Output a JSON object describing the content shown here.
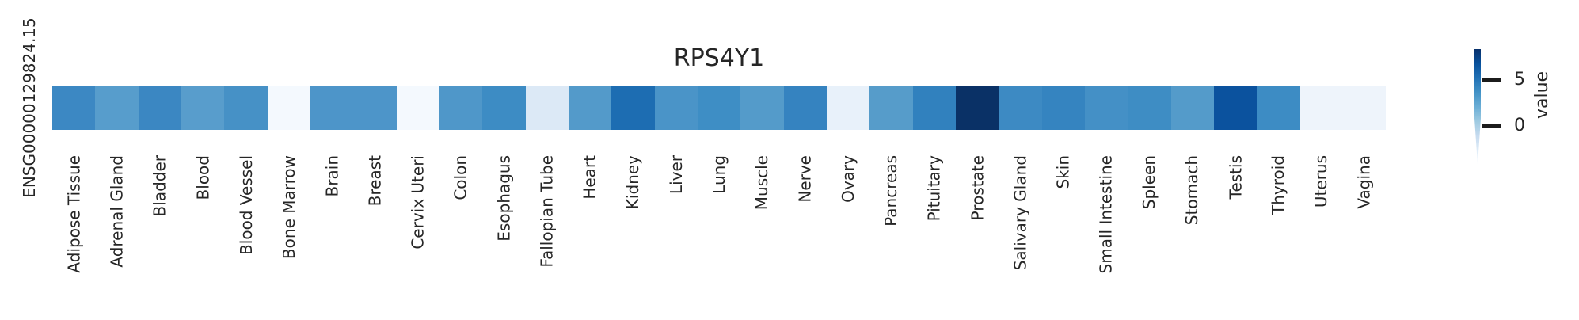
{
  "figure": {
    "title": "RPS4Y1",
    "row_label": "ENSG00000129824.15",
    "background_color": "#ffffff",
    "text_color": "#262626"
  },
  "chart_data": {
    "type": "heatmap",
    "title": "RPS4Y1",
    "rows": [
      "ENSG00000129824.15"
    ],
    "categories": [
      "Adipose Tissue",
      "Adrenal Gland",
      "Bladder",
      "Blood",
      "Blood Vessel",
      "Bone Marrow",
      "Brain",
      "Breast",
      "Cervix Uteri",
      "Colon",
      "Esophagus",
      "Fallopian Tube",
      "Heart",
      "Kidney",
      "Liver",
      "Lung",
      "Muscle",
      "Nerve",
      "Ovary",
      "Pancreas",
      "Pituitary",
      "Prostate",
      "Salivary Gland",
      "Skin",
      "Small Intestine",
      "Spleen",
      "Stomach",
      "Testis",
      "Thyroid",
      "Uterus",
      "Vagina"
    ],
    "values": [
      4.0,
      2.8,
      4.0,
      2.8,
      3.5,
      -3.8,
      3.2,
      3.2,
      -3.8,
      3.1,
      3.8,
      -2.5,
      3.0,
      5.4,
      3.3,
      3.8,
      3.0,
      4.2,
      -3.0,
      2.9,
      4.4,
      8.2,
      3.9,
      4.2,
      3.6,
      3.8,
      3.0,
      6.7,
      3.8,
      -3.4,
      -3.4
    ],
    "cell_colors": [
      "#3c88c3",
      "#579dcc",
      "#3b87c2",
      "#589dcc",
      "#4691c6",
      "#f4f9fe",
      "#4d95c9",
      "#4d95c9",
      "#f4f9fe",
      "#4f97c9",
      "#3d8cc4",
      "#dce9f6",
      "#539aca",
      "#1d6db2",
      "#4a94c8",
      "#3e8ec5",
      "#549bca",
      "#3583c0",
      "#e8f1fa",
      "#569cca",
      "#3181be",
      "#0a3166",
      "#3d8ac3",
      "#3584c0",
      "#4490c6",
      "#3e8dc4",
      "#549bca",
      "#0b529e",
      "#3d8cc4",
      "#eef4fb",
      "#eef4fb"
    ],
    "colormap": "Blues",
    "value_range_estimate": [
      -4.3,
      8.4
    ],
    "grid": false,
    "colorbar": {
      "label": "value",
      "position": "right",
      "tick_labels": [
        "5",
        "0"
      ],
      "top_color": "#08306b",
      "bottom_color": "#f7fbff",
      "tapered_bottom": true
    }
  }
}
